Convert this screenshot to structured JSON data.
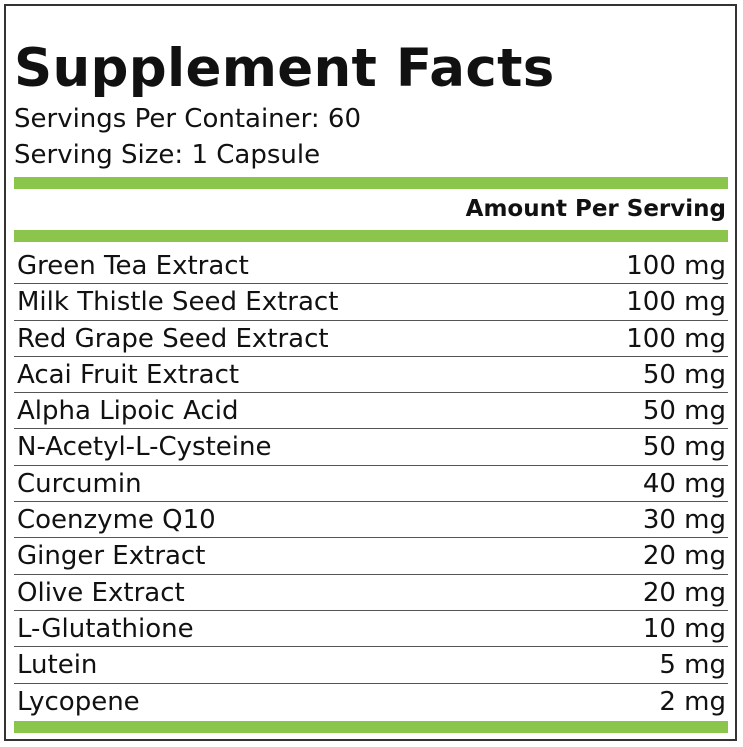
{
  "title": "Supplement Facts",
  "servings_per_container": "Servings Per Container: 60",
  "serving_size": "Serving Size: 1 Capsule",
  "amount_header": "Amount Per Serving",
  "accent_color": "#8cc54b",
  "ingredients": [
    {
      "name": "Green Tea Extract",
      "amount": "100 mg"
    },
    {
      "name": "Milk Thistle Seed Extract",
      "amount": "100 mg"
    },
    {
      "name": "Red Grape Seed Extract",
      "amount": "100 mg"
    },
    {
      "name": "Acai Fruit Extract",
      "amount": "50 mg"
    },
    {
      "name": "Alpha Lipoic Acid",
      "amount": "50 mg"
    },
    {
      "name": "N-Acetyl-L-Cysteine",
      "amount": "50 mg"
    },
    {
      "name": "Curcumin",
      "amount": "40 mg"
    },
    {
      "name": "Coenzyme Q10",
      "amount": "30 mg"
    },
    {
      "name": "Ginger Extract",
      "amount": "20 mg"
    },
    {
      "name": "Olive Extract",
      "amount": "20 mg"
    },
    {
      "name": "L-Glutathione",
      "amount": "10 mg"
    },
    {
      "name": "Lutein",
      "amount": "5 mg"
    },
    {
      "name": "Lycopene",
      "amount": "2 mg"
    }
  ]
}
